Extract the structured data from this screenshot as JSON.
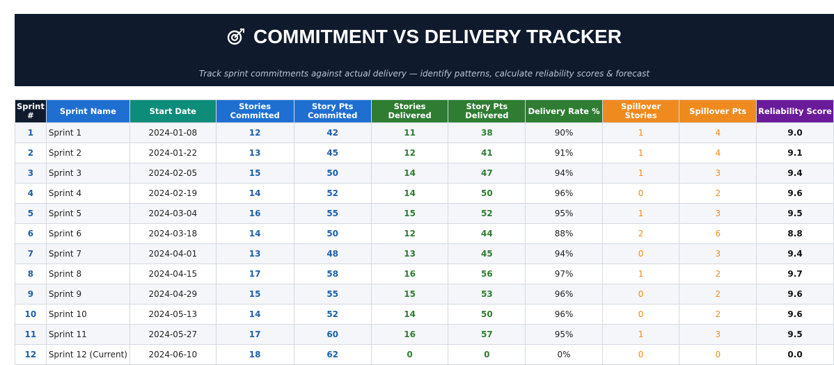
{
  "header": {
    "title": "COMMITMENT VS DELIVERY TRACKER",
    "subtitle": "Track sprint commitments against actual delivery — identify patterns, calculate reliability scores & forecast"
  },
  "table": {
    "columns": [
      "Sprint #",
      "Sprint Name",
      "Start Date",
      "Stories Committed",
      "Story Pts Committed",
      "Stories Delivered",
      "Story Pts Delivered",
      "Delivery Rate %",
      "Spillover Stories",
      "Spillover Pts",
      "Reliability Score"
    ],
    "rows": [
      [
        "1",
        "Sprint 1",
        "2024-01-08",
        "12",
        "42",
        "11",
        "38",
        "90%",
        "1",
        "4",
        "9.0"
      ],
      [
        "2",
        "Sprint 2",
        "2024-01-22",
        "13",
        "45",
        "12",
        "41",
        "91%",
        "1",
        "4",
        "9.1"
      ],
      [
        "3",
        "Sprint 3",
        "2024-02-05",
        "15",
        "50",
        "14",
        "47",
        "94%",
        "1",
        "3",
        "9.4"
      ],
      [
        "4",
        "Sprint 4",
        "2024-02-19",
        "14",
        "52",
        "14",
        "50",
        "96%",
        "0",
        "2",
        "9.6"
      ],
      [
        "5",
        "Sprint 5",
        "2024-03-04",
        "16",
        "55",
        "15",
        "52",
        "95%",
        "1",
        "3",
        "9.5"
      ],
      [
        "6",
        "Sprint 6",
        "2024-03-18",
        "14",
        "50",
        "12",
        "44",
        "88%",
        "2",
        "6",
        "8.8"
      ],
      [
        "7",
        "Sprint 7",
        "2024-04-01",
        "13",
        "48",
        "13",
        "45",
        "94%",
        "0",
        "3",
        "9.4"
      ],
      [
        "8",
        "Sprint 8",
        "2024-04-15",
        "17",
        "58",
        "16",
        "56",
        "97%",
        "1",
        "2",
        "9.7"
      ],
      [
        "9",
        "Sprint 9",
        "2024-04-29",
        "15",
        "55",
        "15",
        "53",
        "96%",
        "0",
        "2",
        "9.6"
      ],
      [
        "10",
        "Sprint 10",
        "2024-05-13",
        "14",
        "52",
        "14",
        "50",
        "96%",
        "0",
        "2",
        "9.6"
      ],
      [
        "11",
        "Sprint 11",
        "2024-05-27",
        "17",
        "60",
        "16",
        "57",
        "95%",
        "1",
        "3",
        "9.5"
      ],
      [
        "12",
        "Sprint 12 (Current)",
        "2024-06-10",
        "18",
        "62",
        "0",
        "0",
        "0%",
        "0",
        "0",
        "0.0"
      ]
    ]
  }
}
